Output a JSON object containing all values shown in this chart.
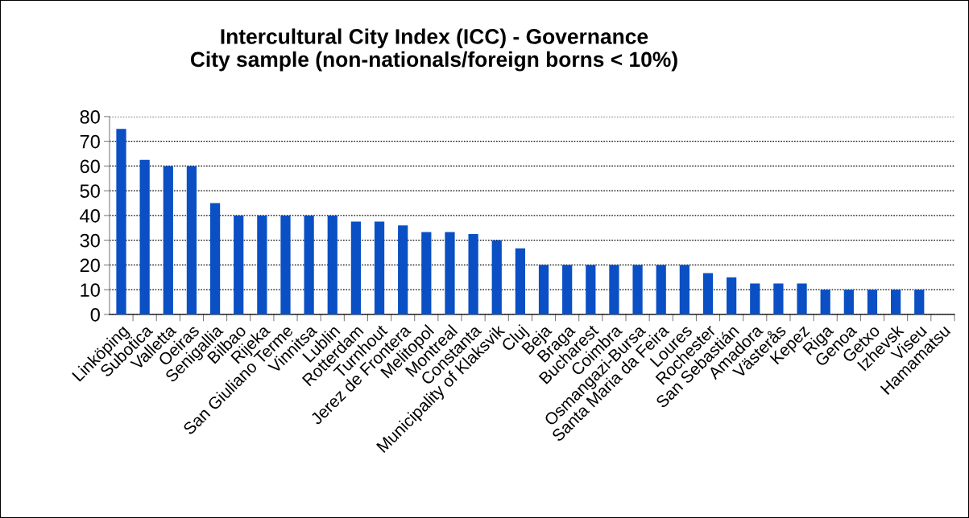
{
  "chart_data": {
    "type": "bar",
    "title": "Intercultural City Index (ICC) - Governance\nCity sample (non-nationals/foreign borns < 10%)",
    "categories": [
      "Linköping",
      "Subotica",
      "Valletta",
      "Oeiras",
      "Senigallia",
      "Bilbao",
      "Rijeka",
      "San Giuliano Terme",
      "Vinnitsa",
      "Lublin",
      "Rotterdam",
      "Turnhout",
      "Jerez de Frontera",
      "Melitopol",
      "Montreal",
      "Constanta",
      "Municipality of Klaksvik",
      "Cluj",
      "Beja",
      "Braga",
      "Bucharest",
      "Coimbra",
      "Osmangazi-Bursa",
      "Santa Maria da Feira",
      "Loures",
      "Rochester",
      "San Sebastián",
      "Amadora",
      "Västerås",
      "Kepez",
      "Riga",
      "Genoa",
      "Getxo",
      "Izhevsk",
      "Viseu",
      "Hamamatsu"
    ],
    "values": [
      75,
      62.5,
      60,
      60,
      45,
      40,
      40,
      40,
      40,
      40,
      37.5,
      37.5,
      36,
      33.3,
      33.3,
      32.5,
      30,
      26.7,
      20,
      20,
      20,
      20,
      20,
      20,
      20,
      16.7,
      15,
      12.5,
      12.5,
      12.5,
      10,
      10,
      10,
      10,
      10,
      0
    ],
    "color": "#0a4fc4",
    "ylim": [
      0,
      80
    ],
    "yticks": [
      0,
      10,
      20,
      30,
      40,
      50,
      60,
      70,
      80
    ],
    "grid": "y"
  }
}
